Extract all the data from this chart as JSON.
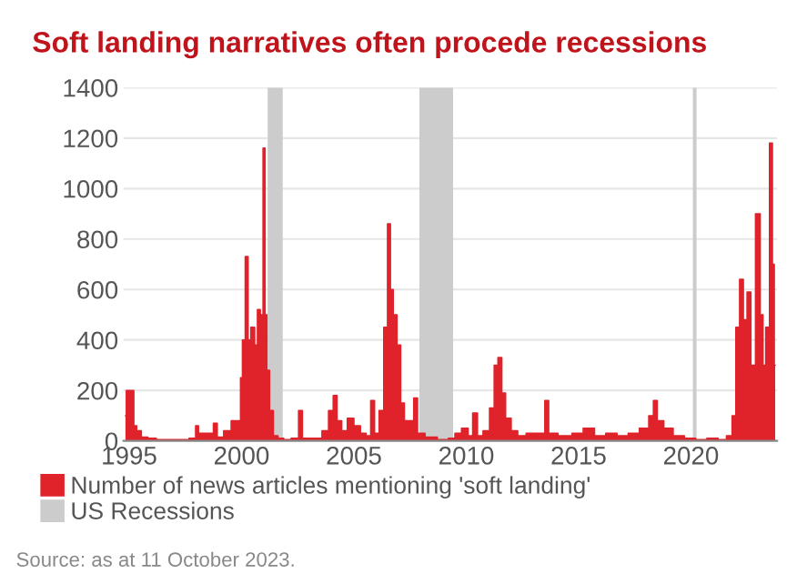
{
  "chart_data": {
    "type": "area",
    "title": "Soft landing narratives often procede recessions",
    "x": [
      "1994-11",
      "1994-12",
      "1995-03",
      "1995-04",
      "1995-06",
      "1995-09",
      "1996-01",
      "1996-06",
      "1997-06",
      "1997-12",
      "1998-01",
      "1998-03",
      "1998-09",
      "1998-11",
      "1999-01",
      "1999-06",
      "1999-09",
      "1999-12",
      "2000-01",
      "2000-02",
      "2000-04",
      "2000-05",
      "2000-07",
      "2000-09",
      "2000-10",
      "2000-12",
      "2001-01",
      "2001-02",
      "2001-03",
      "2001-05",
      "2001-07",
      "2001-10",
      "2002-01",
      "2002-06",
      "2002-09",
      "2002-10",
      "2003-06",
      "2003-10",
      "2004-01",
      "2004-03",
      "2004-05",
      "2004-08",
      "2004-11",
      "2005-03",
      "2005-06",
      "2005-09",
      "2005-11",
      "2006-01",
      "2006-04",
      "2006-06",
      "2006-08",
      "2006-09",
      "2006-11",
      "2007-01",
      "2007-03",
      "2007-05",
      "2007-08",
      "2007-10",
      "2007-12",
      "2008-06",
      "2009-01",
      "2009-06",
      "2009-08",
      "2010-01",
      "2010-03",
      "2010-06",
      "2010-08",
      "2010-12",
      "2011-03",
      "2011-05",
      "2011-07",
      "2011-09",
      "2011-11",
      "2012-03",
      "2012-06",
      "2012-12",
      "2013-06",
      "2013-08",
      "2013-10",
      "2014-06",
      "2015-01",
      "2015-06",
      "2016-01",
      "2016-06",
      "2017-01",
      "2017-06",
      "2018-01",
      "2018-04",
      "2018-06",
      "2018-08",
      "2019-01",
      "2019-06",
      "2020-01",
      "2020-06",
      "2021-01",
      "2021-06",
      "2021-10",
      "2021-12",
      "2022-02",
      "2022-04",
      "2022-06",
      "2022-08",
      "2022-10",
      "2023-01",
      "2023-03",
      "2023-04",
      "2023-06",
      "2023-08",
      "2023-09",
      "2023-10"
    ],
    "series": [
      {
        "name": "Number of news articles mentioning 'soft landing'",
        "color": "#e0232b",
        "values": [
          100,
          200,
          200,
          60,
          40,
          15,
          10,
          5,
          5,
          10,
          60,
          30,
          30,
          70,
          15,
          40,
          80,
          80,
          250,
          400,
          730,
          400,
          450,
          380,
          520,
          500,
          1160,
          500,
          280,
          120,
          20,
          10,
          5,
          10,
          120,
          10,
          10,
          40,
          120,
          180,
          80,
          40,
          90,
          60,
          30,
          20,
          160,
          30,
          120,
          450,
          860,
          600,
          500,
          380,
          150,
          80,
          80,
          170,
          30,
          15,
          5,
          10,
          30,
          50,
          20,
          110,
          20,
          40,
          130,
          300,
          330,
          190,
          90,
          40,
          20,
          30,
          30,
          160,
          30,
          20,
          30,
          50,
          20,
          30,
          20,
          30,
          50,
          100,
          160,
          80,
          50,
          20,
          10,
          5,
          10,
          5,
          20,
          100,
          450,
          640,
          480,
          590,
          300,
          900,
          500,
          300,
          450,
          1180,
          700,
          300
        ]
      }
    ],
    "bands": [
      {
        "axis": "x",
        "from": "2001-03",
        "to": "2001-11",
        "label": "US Recessions",
        "color": "#cccccc"
      },
      {
        "axis": "x",
        "from": "2007-12",
        "to": "2009-06",
        "color": "#cccccc"
      },
      {
        "axis": "x",
        "from": "2020-02",
        "to": "2020-04",
        "color": "#cccccc"
      }
    ],
    "xlim": [
      "1994-10",
      "2023-11"
    ],
    "xticks": [
      {
        "value": "1995-01-01",
        "label": "1995"
      },
      {
        "value": "2000-01-01",
        "label": "2000"
      },
      {
        "value": "2005-01-01",
        "label": "2005"
      },
      {
        "value": "2010-01-01",
        "label": "2010"
      },
      {
        "value": "2015-01-01",
        "label": "2015"
      },
      {
        "value": "2020-01-01",
        "label": "2020"
      }
    ],
    "ylim": [
      0,
      1400
    ],
    "yticks": [
      0,
      200,
      400,
      600,
      800,
      1000,
      1200,
      1400
    ],
    "grid": "y",
    "legend": "bottom left",
    "annotations": [
      "Source: as at 11 October 2023."
    ]
  }
}
